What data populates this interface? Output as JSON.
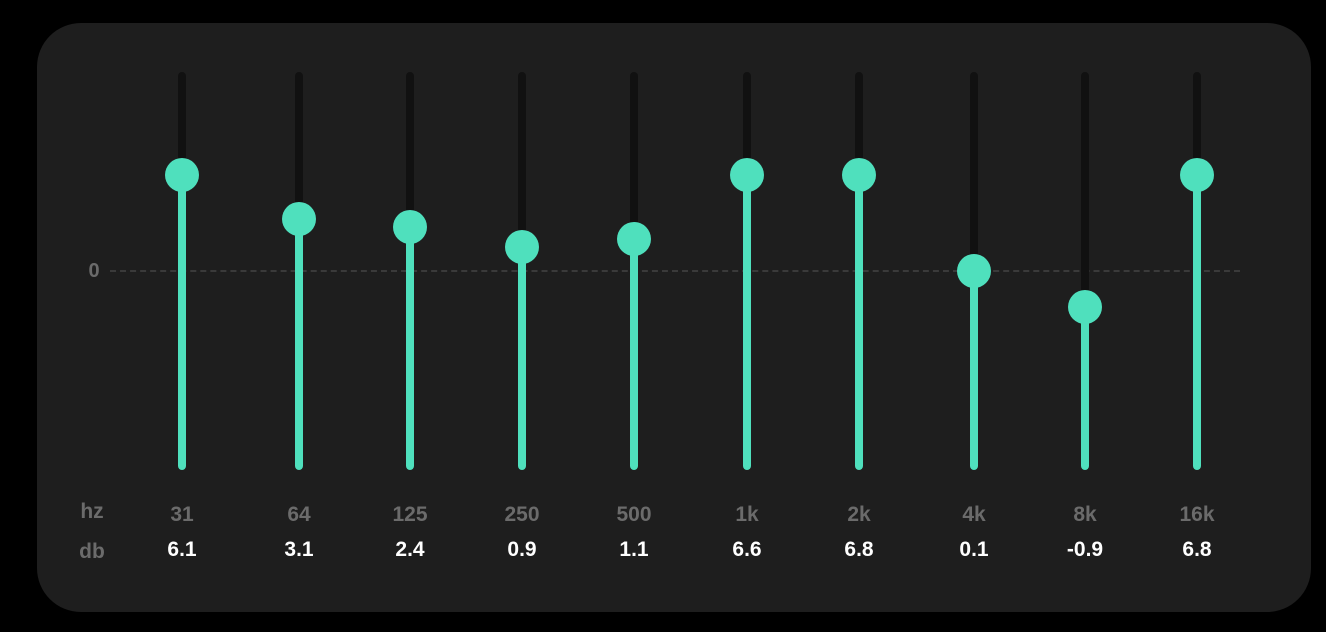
{
  "equalizer": {
    "zero_label": "0",
    "hz_label": "hz",
    "db_label": "db",
    "accent_color": "#4fe0bd",
    "bands": [
      {
        "hz": "31",
        "db": "6.1",
        "knob_level": 0.74
      },
      {
        "hz": "64",
        "db": "3.1",
        "knob_level": 0.63
      },
      {
        "hz": "125",
        "db": "2.4",
        "knob_level": 0.61
      },
      {
        "hz": "250",
        "db": "0.9",
        "knob_level": 0.56
      },
      {
        "hz": "500",
        "db": "1.1",
        "knob_level": 0.58
      },
      {
        "hz": "1k",
        "db": "6.6",
        "knob_level": 0.74
      },
      {
        "hz": "2k",
        "db": "6.8",
        "knob_level": 0.74
      },
      {
        "hz": "4k",
        "db": "0.1",
        "knob_level": 0.5
      },
      {
        "hz": "8k",
        "db": "-0.9",
        "knob_level": 0.41
      },
      {
        "hz": "16k",
        "db": "6.8",
        "knob_level": 0.74
      }
    ]
  }
}
